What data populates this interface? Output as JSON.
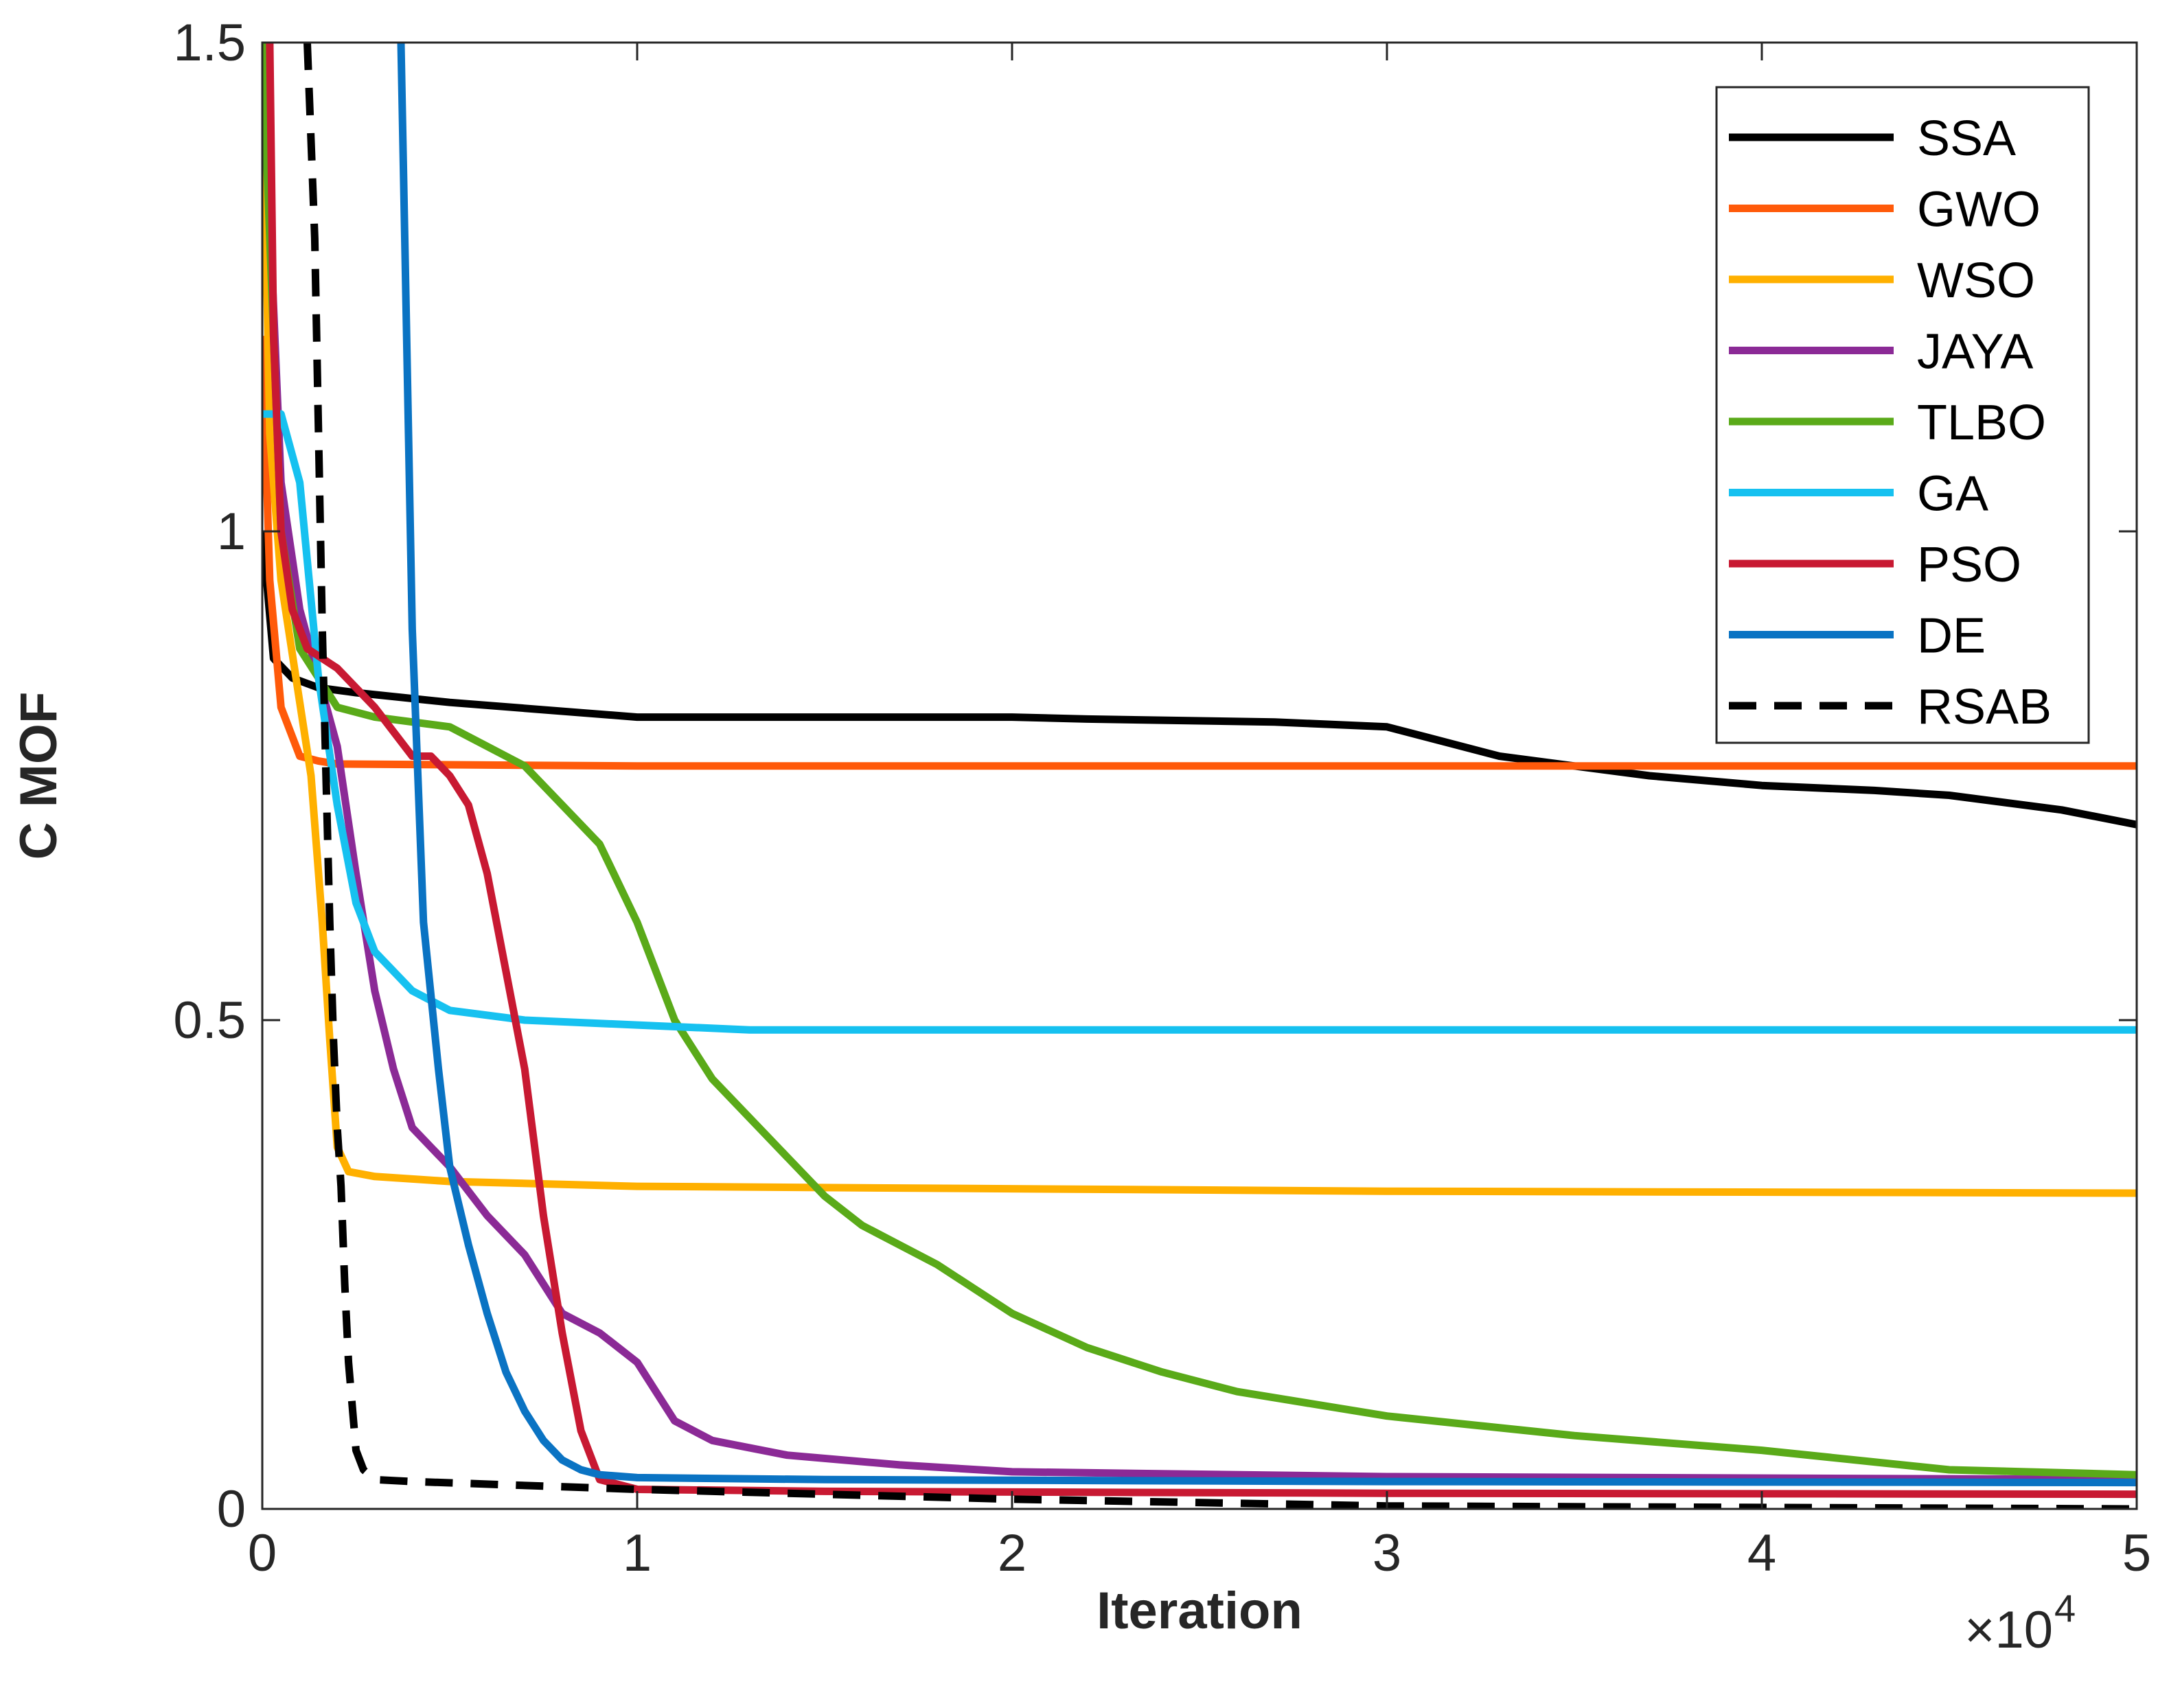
{
  "chart_data": {
    "type": "line",
    "title": "",
    "xlabel": "Iteration",
    "ylabel": "C MOF",
    "x_multiplier": "×10",
    "x_multiplier_exp": "4",
    "xlim": [
      0,
      50000
    ],
    "ylim": [
      0,
      1.5
    ],
    "x_ticks": [
      0,
      10000,
      20000,
      30000,
      40000,
      50000
    ],
    "x_tick_labels": [
      "0",
      "1",
      "2",
      "3",
      "4",
      "5"
    ],
    "y_ticks": [
      0,
      0.5,
      1,
      1.5
    ],
    "y_tick_labels": [
      "0",
      "0.5",
      "1",
      "1.5"
    ],
    "grid": false,
    "legend_position": "top-right",
    "series": [
      {
        "name": "SSA",
        "color": "#000000",
        "dash": "solid",
        "x": [
          0,
          300,
          800,
          1500,
          2500,
          5000,
          10000,
          20000,
          22000,
          27000,
          30000,
          31000,
          33000,
          35000,
          37000,
          40000,
          43000,
          45000,
          48000,
          50000
        ],
        "y": [
          1.0,
          0.87,
          0.85,
          0.84,
          0.835,
          0.825,
          0.81,
          0.81,
          0.808,
          0.805,
          0.8,
          0.79,
          0.77,
          0.76,
          0.75,
          0.74,
          0.735,
          0.73,
          0.715,
          0.7
        ]
      },
      {
        "name": "GWO",
        "color": "#FF5A0A",
        "dash": "solid",
        "x": [
          0,
          200,
          500,
          1000,
          1500,
          2000,
          10000,
          30000,
          50000
        ],
        "y": [
          1.2,
          0.95,
          0.82,
          0.77,
          0.765,
          0.762,
          0.76,
          0.76,
          0.76
        ]
      },
      {
        "name": "WSO",
        "color": "#FFB000",
        "dash": "solid",
        "x": [
          0,
          200,
          500,
          900,
          1300,
          1600,
          1800,
          2000,
          2300,
          3000,
          5000,
          10000,
          30000,
          50000
        ],
        "y": [
          1.5,
          1.1,
          0.95,
          0.85,
          0.75,
          0.6,
          0.48,
          0.37,
          0.345,
          0.34,
          0.335,
          0.33,
          0.325,
          0.323
        ]
      },
      {
        "name": "JAYA",
        "color": "#8B2A96",
        "dash": "solid",
        "x": [
          0,
          500,
          1000,
          1500,
          2000,
          2500,
          3000,
          3500,
          4000,
          5000,
          6000,
          7000,
          8000,
          9000,
          10000,
          11000,
          12000,
          14000,
          17000,
          20000,
          30000,
          50000
        ],
        "y": [
          1.5,
          1.05,
          0.92,
          0.85,
          0.78,
          0.65,
          0.53,
          0.45,
          0.39,
          0.35,
          0.3,
          0.26,
          0.2,
          0.18,
          0.15,
          0.09,
          0.07,
          0.055,
          0.045,
          0.038,
          0.033,
          0.03
        ]
      },
      {
        "name": "TLBO",
        "color": "#5AAA19",
        "dash": "solid",
        "x": [
          0,
          500,
          1000,
          2000,
          3000,
          5000,
          6000,
          7000,
          8000,
          9000,
          10000,
          11000,
          12000,
          13000,
          14000,
          15000,
          16000,
          17000,
          18000,
          20000,
          22000,
          24000,
          26000,
          30000,
          35000,
          40000,
          45000,
          50000
        ],
        "y": [
          1.5,
          1.0,
          0.88,
          0.82,
          0.81,
          0.8,
          0.78,
          0.76,
          0.72,
          0.68,
          0.6,
          0.5,
          0.44,
          0.4,
          0.36,
          0.32,
          0.29,
          0.27,
          0.25,
          0.2,
          0.165,
          0.14,
          0.12,
          0.095,
          0.075,
          0.06,
          0.04,
          0.035
        ]
      },
      {
        "name": "GA",
        "color": "#16C1F0",
        "dash": "solid",
        "x": [
          0,
          500,
          1000,
          1500,
          2000,
          2500,
          3000,
          4000,
          5000,
          7000,
          10000,
          13000,
          20000,
          50000
        ],
        "y": [
          1.12,
          1.12,
          1.05,
          0.85,
          0.72,
          0.62,
          0.57,
          0.53,
          0.51,
          0.5,
          0.495,
          0.49,
          0.49,
          0.49
        ]
      },
      {
        "name": "PSO",
        "color": "#C81932",
        "dash": "solid",
        "x": [
          200,
          300,
          500,
          800,
          1200,
          2000,
          3000,
          4000,
          4500,
          5000,
          5500,
          6000,
          6500,
          7000,
          7500,
          8000,
          8500,
          9000,
          10000,
          15000,
          30000,
          50000
        ],
        "y": [
          1.5,
          1.2,
          1.0,
          0.92,
          0.88,
          0.86,
          0.82,
          0.77,
          0.77,
          0.75,
          0.72,
          0.65,
          0.55,
          0.45,
          0.3,
          0.18,
          0.08,
          0.03,
          0.02,
          0.018,
          0.016,
          0.015
        ]
      },
      {
        "name": "DE",
        "color": "#0A73C3",
        "dash": "solid",
        "x": [
          3700,
          3800,
          4000,
          4300,
          4700,
          5000,
          5500,
          6000,
          6500,
          7000,
          7500,
          8000,
          8500,
          9000,
          10000,
          15000,
          30000,
          50000
        ],
        "y": [
          1.5,
          1.3,
          0.9,
          0.6,
          0.45,
          0.35,
          0.27,
          0.2,
          0.14,
          0.1,
          0.07,
          0.05,
          0.04,
          0.035,
          0.032,
          0.03,
          0.028,
          0.027
        ]
      },
      {
        "name": "RSAB",
        "color": "#000000",
        "dash": "dashed",
        "x": [
          1200,
          1300,
          1400,
          1500,
          1600,
          1700,
          1800,
          1900,
          2000,
          2100,
          2200,
          2300,
          2500,
          2700,
          3000,
          4000,
          10000,
          20000,
          30000,
          50000
        ],
        "y": [
          1.5,
          1.4,
          1.3,
          1.1,
          0.9,
          0.75,
          0.6,
          0.48,
          0.39,
          0.33,
          0.23,
          0.15,
          0.06,
          0.04,
          0.03,
          0.028,
          0.02,
          0.01,
          0.003,
          0.0
        ]
      }
    ]
  }
}
